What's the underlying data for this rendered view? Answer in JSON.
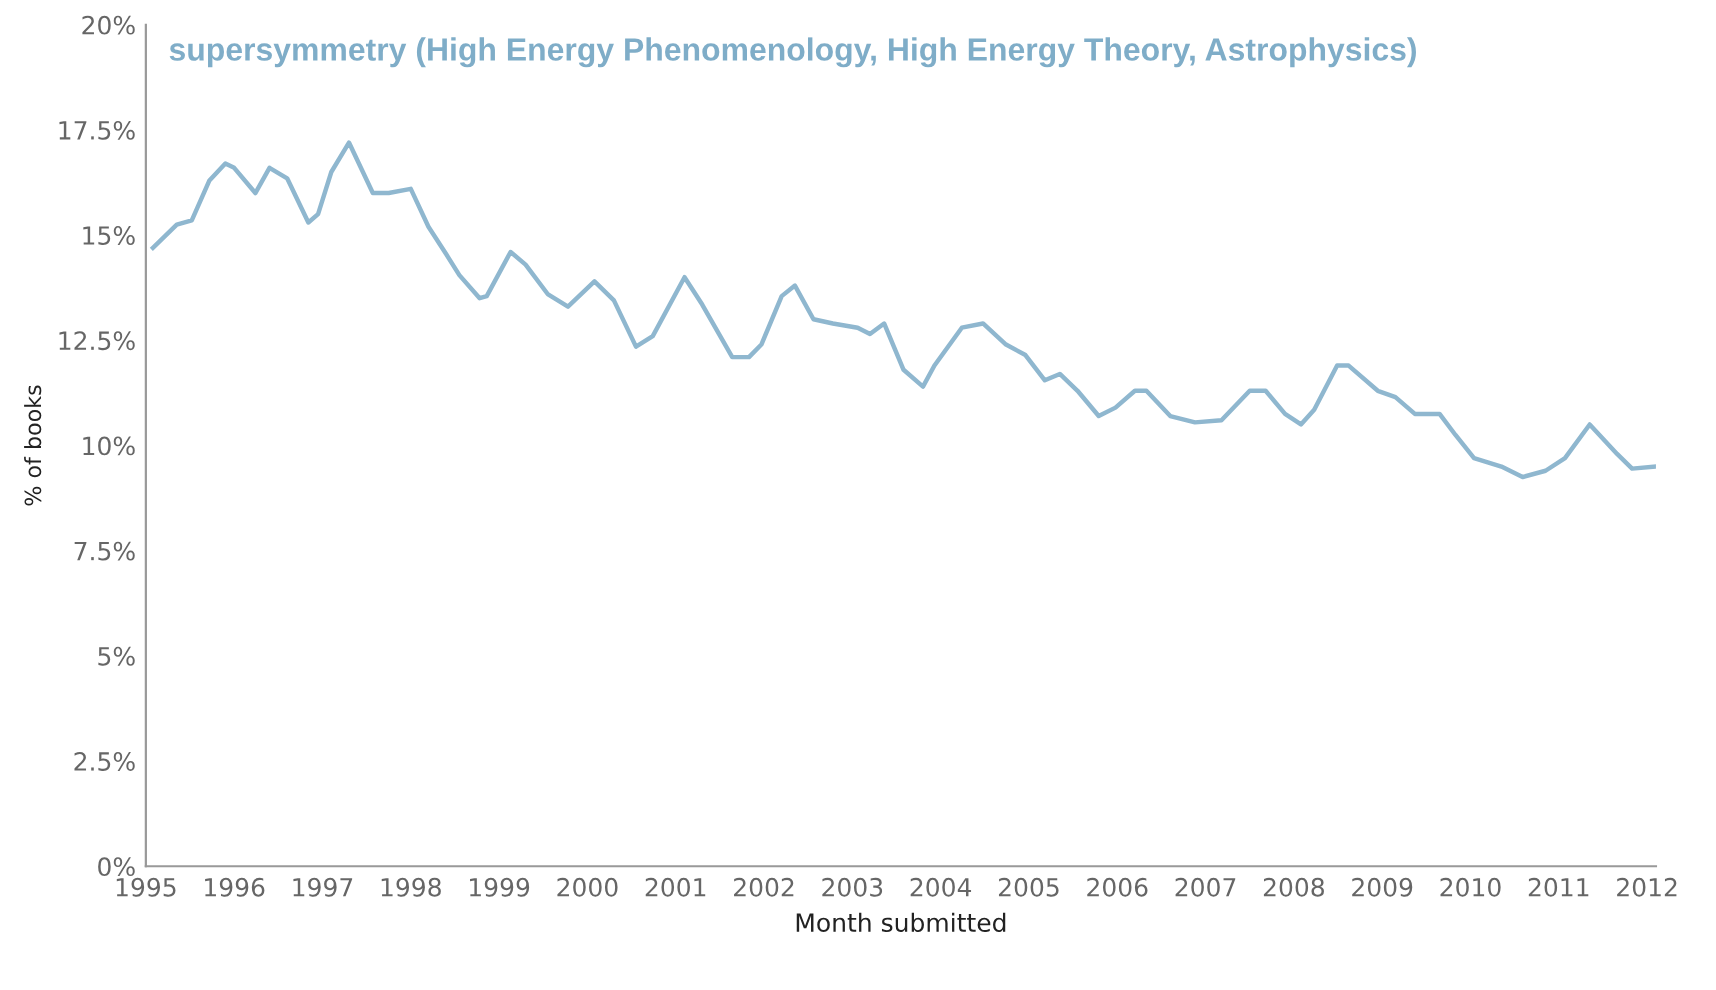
{
  "chart_data": {
    "type": "line",
    "title": "supersymmetry (High Energy Phenomenology, High Energy Theory, Astrophysics)",
    "xlabel": "Month submitted",
    "ylabel": "% of books",
    "xlim": [
      1995,
      2012.1
    ],
    "xticks": [
      1995,
      1996,
      1997,
      1998,
      1999,
      2000,
      2001,
      2002,
      2003,
      2004,
      2005,
      2006,
      2007,
      2008,
      2009,
      2010,
      2011,
      2012
    ],
    "ylim": [
      0,
      20
    ],
    "yticks": [
      {
        "value": 0,
        "label": "0%"
      },
      {
        "value": 2.5,
        "label": "2.5%"
      },
      {
        "value": 5,
        "label": "5%"
      },
      {
        "value": 7.5,
        "label": "7.5%"
      },
      {
        "value": 10,
        "label": "10%"
      },
      {
        "value": 12.5,
        "label": "12.5%"
      },
      {
        "value": 15,
        "label": "15%"
      },
      {
        "value": 17.5,
        "label": "17.5%"
      },
      {
        "value": 20,
        "label": "20%"
      }
    ],
    "grid": false,
    "marker": "none",
    "line_style": "solid",
    "series": [
      {
        "color": "#8fb7cf",
        "x": [
          1995.08,
          1995.35,
          1995.52,
          1995.72,
          1995.9,
          1996.0,
          1996.24,
          1996.4,
          1996.6,
          1996.84,
          1996.95,
          1997.1,
          1997.3,
          1997.57,
          1997.75,
          1998.0,
          1998.2,
          1998.4,
          1998.55,
          1998.78,
          1998.86,
          1999.13,
          1999.3,
          1999.55,
          1999.78,
          2000.08,
          2000.3,
          2000.55,
          2000.74,
          2001.1,
          2001.3,
          2001.64,
          2001.83,
          2001.97,
          2002.2,
          2002.35,
          2002.56,
          2002.78,
          2003.06,
          2003.2,
          2003.36,
          2003.58,
          2003.8,
          2003.93,
          2004.24,
          2004.48,
          2004.74,
          2004.96,
          2005.18,
          2005.35,
          2005.55,
          2005.79,
          2005.98,
          2006.2,
          2006.33,
          2006.6,
          2006.88,
          2007.18,
          2007.5,
          2007.68,
          2007.9,
          2008.08,
          2008.23,
          2008.49,
          2008.62,
          2008.95,
          2009.15,
          2009.37,
          2009.65,
          2009.83,
          2010.04,
          2010.35,
          2010.59,
          2010.85,
          2011.07,
          2011.35,
          2011.66,
          2011.83,
          2012.1
        ],
        "values": [
          14.7,
          15.25,
          15.35,
          16.3,
          16.7,
          16.6,
          16.0,
          16.6,
          16.35,
          15.3,
          15.5,
          16.5,
          17.2,
          16.0,
          16.0,
          16.1,
          15.2,
          14.55,
          14.05,
          13.5,
          13.55,
          14.6,
          14.3,
          13.6,
          13.3,
          13.9,
          13.45,
          12.35,
          12.6,
          14.0,
          13.35,
          12.1,
          12.1,
          12.4,
          13.55,
          13.8,
          13.0,
          12.9,
          12.8,
          12.65,
          12.9,
          11.8,
          11.4,
          11.9,
          12.8,
          12.9,
          12.4,
          12.15,
          11.55,
          11.7,
          11.3,
          10.7,
          10.9,
          11.3,
          11.3,
          10.7,
          10.55,
          10.6,
          11.3,
          11.3,
          10.75,
          10.5,
          10.85,
          11.9,
          11.9,
          11.3,
          11.15,
          10.75,
          10.75,
          10.25,
          9.7,
          9.5,
          9.25,
          9.4,
          9.7,
          10.5,
          9.8,
          9.45,
          9.5
        ]
      }
    ]
  }
}
